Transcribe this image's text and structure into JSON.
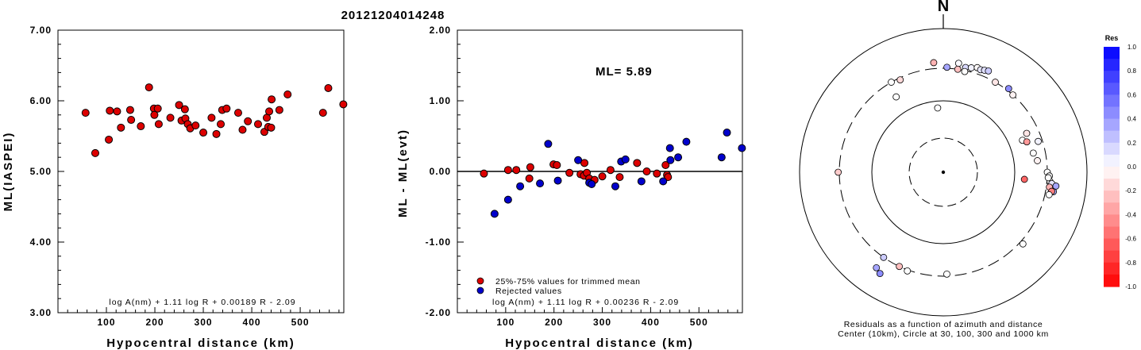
{
  "title": "20121204014248",
  "chart_data": [
    {
      "type": "scatter",
      "xlabel": "Hypocentral distance (km)",
      "ylabel": "ML(IASPEI)",
      "xlim": [
        0,
        590
      ],
      "ylim": [
        3.0,
        7.0
      ],
      "xticks": [
        "100",
        "200",
        "300",
        "400",
        "500"
      ],
      "yticks": [
        "3.00",
        "4.00",
        "5.00",
        "6.00",
        "7.00"
      ],
      "formula": "log A(nm) + 1.11 log R + 0.00189 R - 2.09",
      "color": "#dd0000",
      "points": [
        [
          57,
          5.83
        ],
        [
          77,
          5.26
        ],
        [
          105,
          5.45
        ],
        [
          107,
          5.86
        ],
        [
          122,
          5.85
        ],
        [
          130,
          5.62
        ],
        [
          149,
          5.87
        ],
        [
          151,
          5.73
        ],
        [
          171,
          5.64
        ],
        [
          188,
          6.19
        ],
        [
          198,
          5.89
        ],
        [
          199,
          5.8
        ],
        [
          206,
          5.89
        ],
        [
          208,
          5.67
        ],
        [
          232,
          5.76
        ],
        [
          250,
          5.94
        ],
        [
          255,
          5.72
        ],
        [
          262,
          5.88
        ],
        [
          263,
          5.75
        ],
        [
          268,
          5.67
        ],
        [
          273,
          5.61
        ],
        [
          284,
          5.65
        ],
        [
          300,
          5.55
        ],
        [
          317,
          5.76
        ],
        [
          327,
          5.53
        ],
        [
          336,
          5.67
        ],
        [
          339,
          5.87
        ],
        [
          348,
          5.89
        ],
        [
          372,
          5.83
        ],
        [
          381,
          5.59
        ],
        [
          392,
          5.71
        ],
        [
          413,
          5.67
        ],
        [
          426,
          5.56
        ],
        [
          431,
          5.76
        ],
        [
          434,
          5.63
        ],
        [
          436,
          5.85
        ],
        [
          440,
          5.62
        ],
        [
          441,
          6.02
        ],
        [
          457,
          5.87
        ],
        [
          474,
          6.09
        ],
        [
          547,
          5.83
        ],
        [
          558,
          6.18
        ],
        [
          589,
          5.95
        ]
      ]
    },
    {
      "type": "scatter",
      "xlabel": "Hypocentral distance (km)",
      "ylabel": "ML - ML(evt)",
      "xlim": [
        0,
        590
      ],
      "ylim": [
        -2.0,
        2.0
      ],
      "xticks": [
        "100",
        "200",
        "300",
        "400",
        "500"
      ],
      "yticks": [
        "-2.00",
        "-1.00",
        "0.00",
        "1.00",
        "2.00"
      ],
      "annotation": "ML=  5.89",
      "formula": "log A(nm) + 1.11 log R + 0.00236 R - 2.09",
      "legend": [
        {
          "label": "25%-75% values for trimmed mean",
          "color": "#dd0000"
        },
        {
          "label": "Rejected values",
          "color": "#0000cc"
        }
      ],
      "series": [
        {
          "name": "25%-75% values for trimmed mean",
          "color": "#dd0000",
          "points": [
            [
              55,
              -0.03
            ],
            [
              105,
              0.02
            ],
            [
              122,
              0.02
            ],
            [
              149,
              -0.1
            ],
            [
              151,
              0.06
            ],
            [
              199,
              0.1
            ],
            [
              206,
              0.09
            ],
            [
              232,
              -0.02
            ],
            [
              255,
              -0.04
            ],
            [
              262,
              -0.06
            ],
            [
              263,
              0.12
            ],
            [
              268,
              -0.02
            ],
            [
              273,
              -0.1
            ],
            [
              284,
              -0.12
            ],
            [
              300,
              -0.07
            ],
            [
              317,
              0.02
            ],
            [
              336,
              -0.08
            ],
            [
              372,
              0.12
            ],
            [
              392,
              0.0
            ],
            [
              413,
              -0.03
            ],
            [
              431,
              0.09
            ],
            [
              434,
              -0.05
            ],
            [
              436,
              -0.08
            ]
          ]
        },
        {
          "name": "Rejected values",
          "color": "#0000cc",
          "points": [
            [
              77,
              -0.6
            ],
            [
              105,
              -0.4
            ],
            [
              130,
              -0.21
            ],
            [
              171,
              -0.17
            ],
            [
              188,
              0.39
            ],
            [
              208,
              -0.13
            ],
            [
              250,
              0.16
            ],
            [
              273,
              -0.16
            ],
            [
              278,
              -0.18
            ],
            [
              327,
              -0.21
            ],
            [
              339,
              0.14
            ],
            [
              348,
              0.17
            ],
            [
              381,
              -0.14
            ],
            [
              426,
              -0.14
            ],
            [
              440,
              0.33
            ],
            [
              441,
              0.16
            ],
            [
              457,
              0.2
            ],
            [
              474,
              0.42
            ],
            [
              547,
              0.2
            ],
            [
              558,
              0.55
            ],
            [
              589,
              0.33
            ]
          ]
        }
      ]
    },
    {
      "type": "scatter",
      "subtype": "polar",
      "north_label": "N",
      "caption_line1": "Residuals as a function of azimuth and distance",
      "caption_line2": "Center (10km), Circle at 30, 100, 300 and 1000 km",
      "rings_km": [
        30,
        100,
        300,
        1000
      ],
      "colorbar": {
        "title": "Res",
        "ticks": [
          "1.0",
          "0.8",
          "0.6",
          "0.4",
          "0.2",
          "0.0",
          "-0.2",
          "-0.4",
          "-0.6",
          "-0.8",
          "-1.0"
        ],
        "min": -1.0,
        "max": 1.0
      },
      "points": [
        {
          "az": 8,
          "dist": 360,
          "res": 0.02
        },
        {
          "az": 12,
          "dist": 330,
          "res": 0.15
        },
        {
          "az": 15,
          "dist": 340,
          "res": 0.05
        },
        {
          "az": 18,
          "dist": 360,
          "res": -0.02
        },
        {
          "az": 20,
          "dist": 350,
          "res": 0.1
        },
        {
          "az": 22,
          "dist": 360,
          "res": 0.12
        },
        {
          "az": 24,
          "dist": 370,
          "res": 0.2
        },
        {
          "az": 355,
          "dist": 360,
          "res": -0.3
        },
        {
          "az": 2,
          "dist": 310,
          "res": 0.35
        },
        {
          "az": 8,
          "dist": 300,
          "res": -0.25
        },
        {
          "az": 12,
          "dist": 290,
          "res": 0.0
        },
        {
          "az": 30,
          "dist": 300,
          "res": -0.1
        },
        {
          "az": 38,
          "dist": 320,
          "res": 0.45
        },
        {
          "az": 42,
          "dist": 300,
          "res": -0.05
        },
        {
          "az": 335,
          "dist": 280,
          "res": -0.15
        },
        {
          "az": 330,
          "dist": 300,
          "res": 0.0
        },
        {
          "az": 328,
          "dist": 180,
          "res": 0.0
        },
        {
          "az": 355,
          "dist": 80,
          "res": 0.0
        },
        {
          "az": 68,
          "dist": 160,
          "res": 0.0
        },
        {
          "az": 70,
          "dist": 180,
          "res": -0.4
        },
        {
          "az": 65,
          "dist": 200,
          "res": -0.1
        },
        {
          "az": 72,
          "dist": 260,
          "res": 0.05
        },
        {
          "az": 78,
          "dist": 200,
          "res": 0.0
        },
        {
          "az": 83,
          "dist": 220,
          "res": -0.05
        },
        {
          "az": 95,
          "dist": 140,
          "res": -0.6
        },
        {
          "az": 90,
          "dist": 300,
          "res": 0.0
        },
        {
          "az": 92,
          "dist": 320,
          "res": 0.0
        },
        {
          "az": 95,
          "dist": 330,
          "res": 0.0
        },
        {
          "az": 96,
          "dist": 350,
          "res": 0.1
        },
        {
          "az": 98,
          "dist": 330,
          "res": -0.3
        },
        {
          "az": 100,
          "dist": 380,
          "res": 0.3
        },
        {
          "az": 97,
          "dist": 400,
          "res": 0.35
        },
        {
          "az": 100,
          "dist": 360,
          "res": -0.5
        },
        {
          "az": 102,
          "dist": 340,
          "res": 0.0
        },
        {
          "az": 93,
          "dist": 310,
          "res": 0.0
        },
        {
          "az": 132,
          "dist": 330,
          "res": 0.0
        },
        {
          "az": 178,
          "dist": 280,
          "res": 0.0
        },
        {
          "az": 200,
          "dist": 310,
          "res": 0.0
        },
        {
          "az": 205,
          "dist": 300,
          "res": -0.25
        },
        {
          "az": 215,
          "dist": 300,
          "res": 0.2
        },
        {
          "az": 215,
          "dist": 440,
          "res": 0.35
        },
        {
          "az": 212,
          "dist": 480,
          "res": 0.45
        },
        {
          "az": 270,
          "dist": 310,
          "res": -0.2
        }
      ]
    }
  ]
}
